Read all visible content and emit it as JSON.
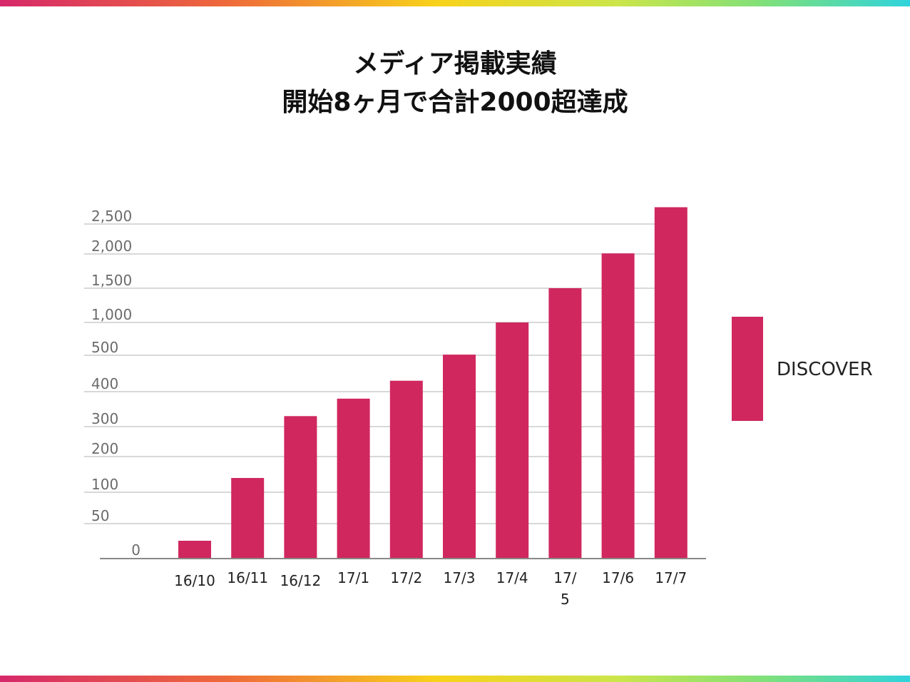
{
  "title_lines": [
    "メディア掲載実績",
    "開始8ヶ月で合計2000超達成"
  ],
  "colors": {
    "bar": "#d0275f",
    "grid": "#cccccc",
    "axis": "#888888"
  },
  "chart_data": {
    "type": "bar",
    "title": "メディア掲載実績 開始8ヶ月で合計2000超達成",
    "y_scale": "non-linear (category-spaced ticks)",
    "ytick_labels": [
      "0",
      "50",
      "100",
      "200",
      "300",
      "400",
      "500",
      "1,000",
      "1,500",
      "2,000",
      "2,500"
    ],
    "categories": [
      "16/10",
      "16/11",
      "16/12",
      "17/1",
      "17/2",
      "17/3",
      "17/4",
      "17/5",
      "17/6",
      "17/7"
    ],
    "category_display": [
      [
        "16/10"
      ],
      [
        "16/11"
      ],
      [
        "16/12"
      ],
      [
        "17/1"
      ],
      [
        "17/2"
      ],
      [
        "17/3"
      ],
      [
        "17/4"
      ],
      [
        "17/",
        "5"
      ],
      [
        "17/6"
      ],
      [
        "17/7"
      ]
    ],
    "series": [
      {
        "name": "DISCOVER",
        "values": [
          25,
          140,
          330,
          380,
          430,
          510,
          1000,
          1500,
          2010,
          2780
        ]
      }
    ],
    "grid": true,
    "legend_position": "right"
  }
}
